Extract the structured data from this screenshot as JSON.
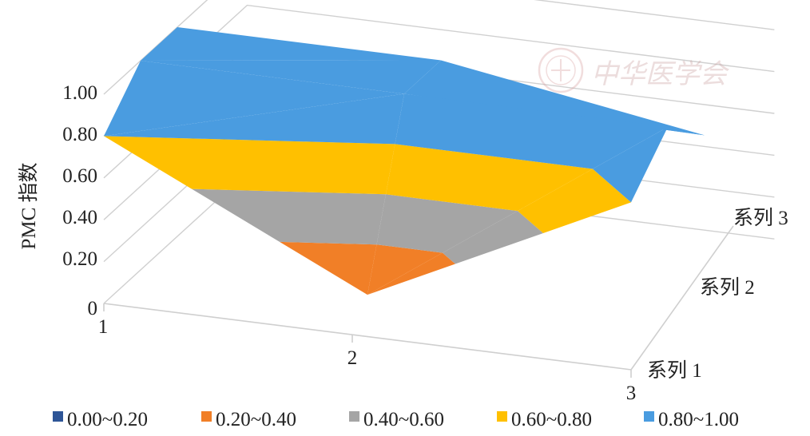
{
  "watermark": {
    "text": "中华医学会"
  },
  "chart_data": {
    "type": "surface",
    "title": "",
    "ylabel": "PMC 指数",
    "zlim": [
      0,
      1.0
    ],
    "z_ticks": [
      "0",
      "0.20",
      "0.40",
      "0.60",
      "0.80",
      "1.00"
    ],
    "x_categories": [
      "1",
      "2",
      "3"
    ],
    "series": [
      {
        "name": "系列 1",
        "values": [
          0.8,
          0.2,
          0.8
        ]
      },
      {
        "name": "系列 2",
        "values": [
          1.0,
          1.0,
          1.0
        ]
      },
      {
        "name": "系列 3",
        "values": [
          1.0,
          1.0,
          0.8
        ]
      }
    ],
    "bands": [
      {
        "label": "0.00~0.20",
        "range": [
          0.0,
          0.2
        ],
        "color": "#2e5597"
      },
      {
        "label": "0.20~0.40",
        "range": [
          0.2,
          0.4
        ],
        "color": "#f17f27"
      },
      {
        "label": "0.40~0.60",
        "range": [
          0.4,
          0.6
        ],
        "color": "#a5a5a5"
      },
      {
        "label": "0.60~0.80",
        "range": [
          0.6,
          0.8
        ],
        "color": "#ffc000"
      },
      {
        "label": "0.80~1.00",
        "range": [
          0.8,
          1.0
        ],
        "color": "#4a9ce0"
      }
    ],
    "legend_position": "bottom",
    "grid": true
  }
}
